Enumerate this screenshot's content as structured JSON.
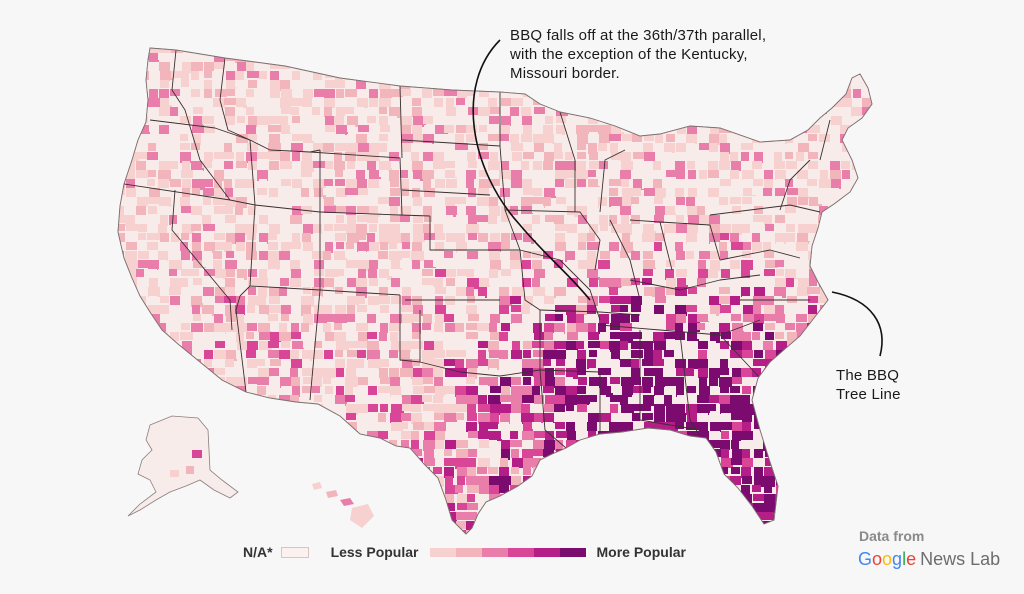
{
  "annotations": {
    "top": {
      "lines": [
        "BBQ falls off at the 36th/37th parallel,",
        "with the exception of the Kentucky,",
        "Missouri border."
      ]
    },
    "right": {
      "lines": [
        "The BBQ",
        "Tree Line"
      ]
    }
  },
  "legend": {
    "na_label": "N/A*",
    "less_label": "Less Popular",
    "more_label": "More Popular",
    "na_color": "#fbf2f0",
    "bin_colors": [
      "#f6d1cf",
      "#f2b5bb",
      "#ea7eab",
      "#d94597",
      "#b41e86",
      "#7c0b6f"
    ]
  },
  "credit": {
    "label": "Data from",
    "brand": {
      "letters": [
        "G",
        "o",
        "o",
        "g",
        "l",
        "e"
      ],
      "suffix": "News Lab"
    }
  },
  "colors": {
    "background": "#f7f7f7",
    "land": "#f8ecea",
    "state_border": "#3a2f2f",
    "annotation_line": "#111111"
  }
}
